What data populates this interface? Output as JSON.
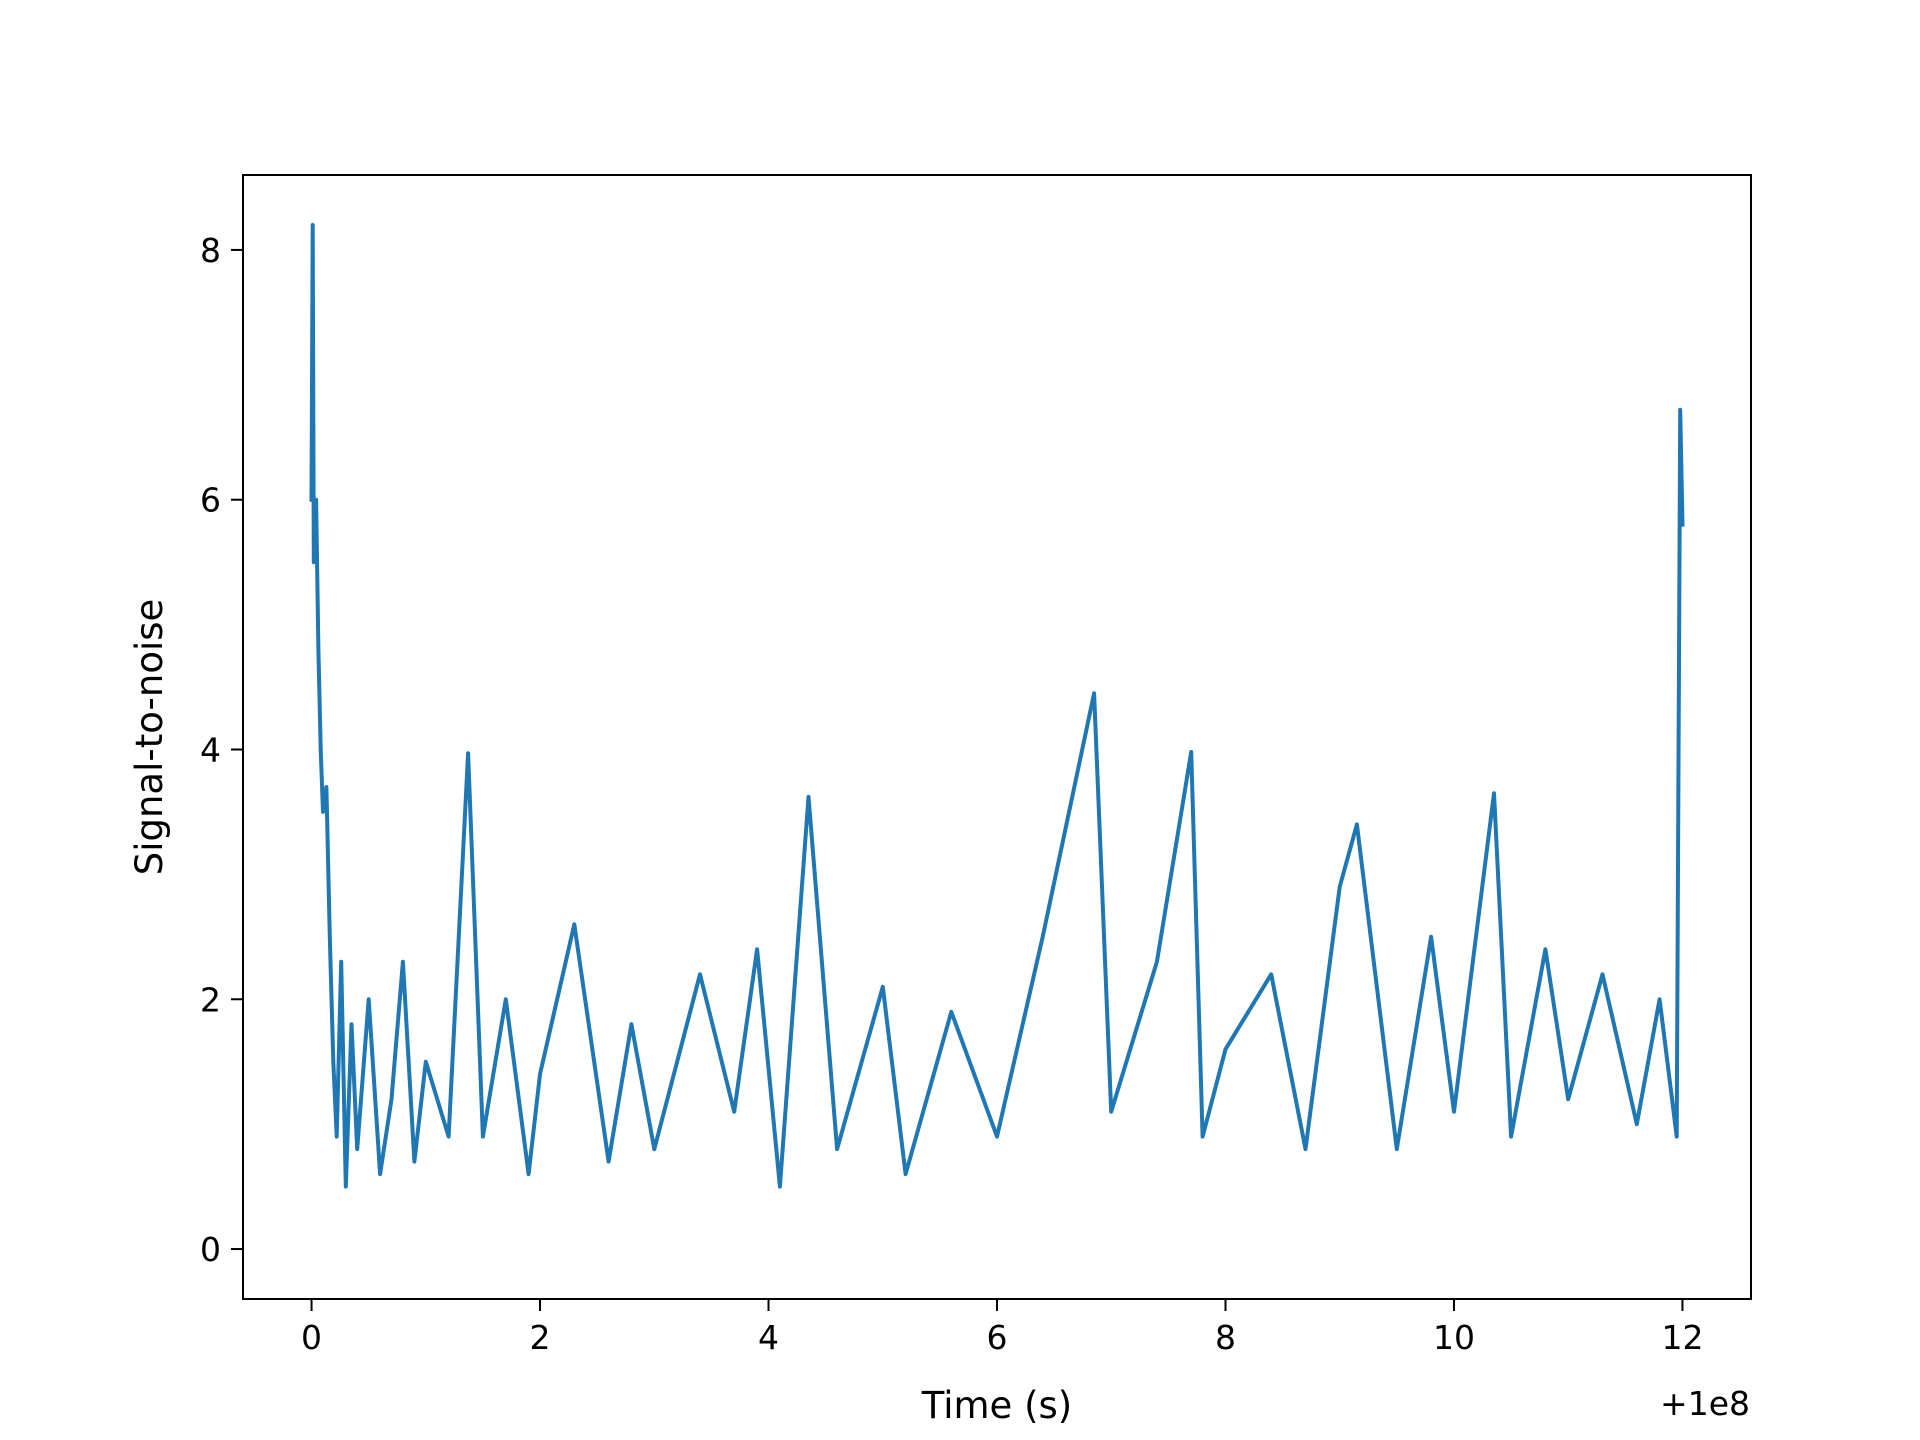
{
  "chart_data": {
    "type": "line",
    "title": "",
    "xlabel": "Time (s)",
    "ylabel": "Signal-to-noise",
    "x_offset_label": "+1e8",
    "xlim": [
      -0.6,
      12.6
    ],
    "ylim": [
      -0.4,
      8.6
    ],
    "xticks": [
      0,
      2,
      4,
      6,
      8,
      10,
      12
    ],
    "yticks": [
      0,
      2,
      4,
      6,
      8
    ],
    "xtick_labels": [
      "0",
      "2",
      "4",
      "6",
      "8",
      "10",
      "12"
    ],
    "ytick_labels": [
      "0",
      "2",
      "4",
      "6",
      "8"
    ],
    "grid": false,
    "legend": "none",
    "series_color": "#1f77b4",
    "series": [
      {
        "x": [
          0.0,
          0.01,
          0.02,
          0.04,
          0.06,
          0.08,
          0.1,
          0.13,
          0.16,
          0.19,
          0.22,
          0.26,
          0.3,
          0.35,
          0.4,
          0.5,
          0.6,
          0.7,
          0.8,
          0.9,
          1.0,
          1.2,
          1.37,
          1.5,
          1.7,
          1.9,
          2.0,
          2.3,
          2.6,
          2.8,
          3.0,
          3.4,
          3.7,
          3.9,
          4.1,
          4.35,
          4.6,
          5.0,
          5.2,
          5.6,
          6.0,
          6.4,
          6.85,
          7.0,
          7.4,
          7.7,
          7.8,
          8.0,
          8.4,
          8.7,
          9.0,
          9.15,
          9.5,
          9.8,
          10.0,
          10.35,
          10.5,
          10.8,
          11.0,
          11.3,
          11.6,
          11.8,
          11.95,
          11.98,
          12.0
        ],
        "y": [
          6.0,
          8.2,
          5.5,
          6.0,
          4.8,
          4.0,
          3.5,
          3.7,
          2.5,
          1.5,
          0.9,
          2.3,
          0.5,
          1.8,
          0.8,
          2.0,
          0.6,
          1.2,
          2.3,
          0.7,
          1.5,
          0.9,
          3.97,
          0.9,
          2.0,
          0.6,
          1.4,
          2.6,
          0.7,
          1.8,
          0.8,
          2.2,
          1.1,
          2.4,
          0.5,
          3.62,
          0.8,
          2.1,
          0.6,
          1.9,
          0.9,
          2.5,
          4.45,
          1.1,
          2.3,
          3.98,
          0.9,
          1.6,
          2.2,
          0.8,
          2.9,
          3.4,
          0.8,
          2.5,
          1.1,
          3.65,
          0.9,
          2.4,
          1.2,
          2.2,
          1.0,
          2.0,
          0.9,
          6.72,
          5.8
        ]
      }
    ]
  }
}
